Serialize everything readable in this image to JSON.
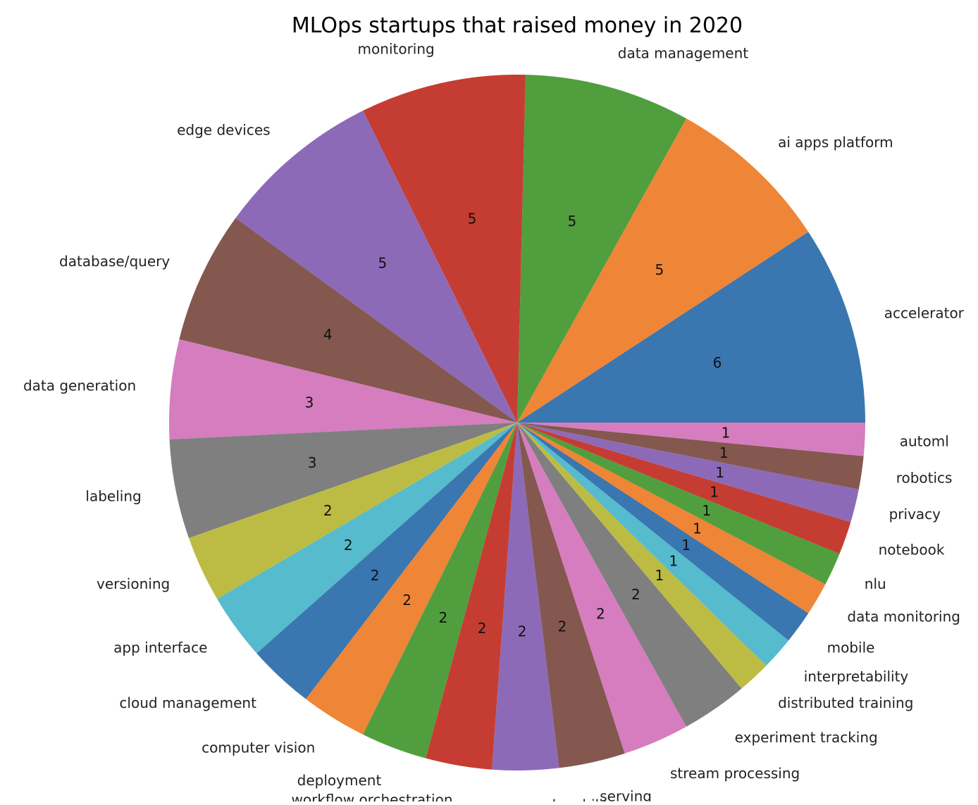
{
  "chart_data": {
    "type": "pie",
    "title": "MLOps startups that raised money in 2020",
    "categories": [
      "accelerator",
      "ai apps platform",
      "data management",
      "monitoring",
      "edge devices",
      "database/query",
      "data generation",
      "labeling",
      "versioning",
      "app interface",
      "cloud management",
      "computer vision",
      "deployment",
      "workflow orchestration",
      "explanability",
      "serving",
      "stream processing",
      "experiment tracking",
      "distributed training",
      "interpretability",
      "mobile",
      "data monitoring",
      "nlu",
      "notebook",
      "privacy",
      "robotics",
      "automl"
    ],
    "values": [
      6,
      5,
      5,
      5,
      5,
      4,
      3,
      3,
      2,
      2,
      2,
      2,
      2,
      2,
      2,
      2,
      2,
      2,
      1,
      1,
      1,
      1,
      1,
      1,
      1,
      1,
      1
    ],
    "colors": [
      "#3a76af",
      "#ef8536",
      "#519e3e",
      "#c53d32",
      "#8d6ab8",
      "#84584e",
      "#d57dbe",
      "#7f7f7f",
      "#bcbc45",
      "#56bbcc"
    ],
    "start_angle_deg": 0,
    "direction": "counterclockwise",
    "legend": "none"
  }
}
